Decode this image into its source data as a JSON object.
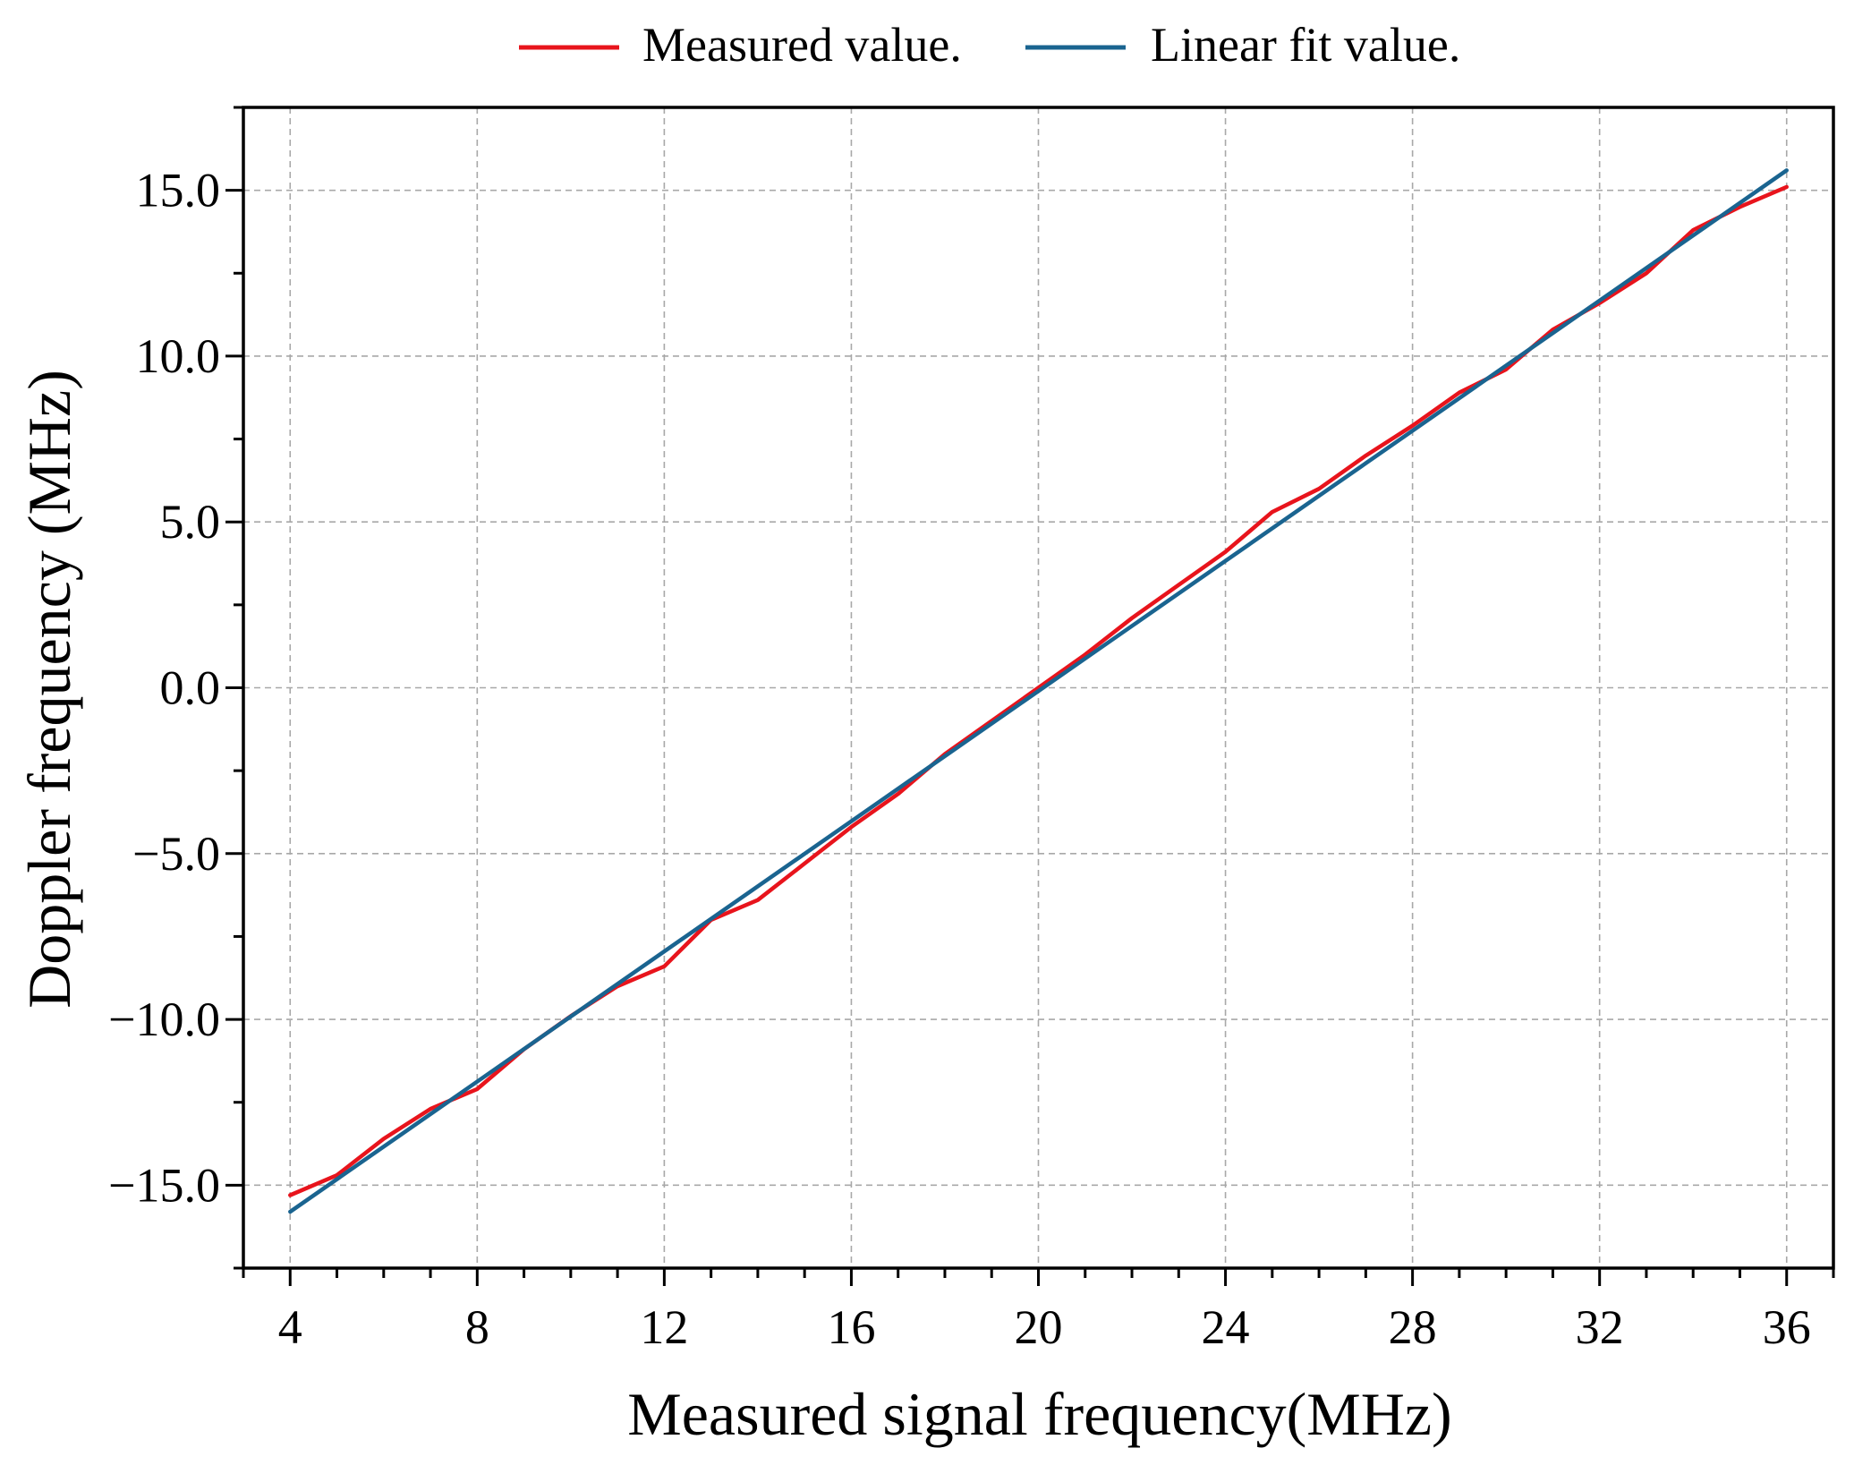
{
  "chart_data": {
    "type": "line",
    "title": "",
    "xlabel": "Measured signal frequency(MHz)",
    "ylabel": "Doppler frequency (MHz)",
    "xlim": [
      3,
      37
    ],
    "ylim": [
      -17.5,
      17.5
    ],
    "x_ticks": [
      4,
      8,
      12,
      16,
      20,
      24,
      28,
      32,
      36
    ],
    "x_tick_labels": [
      "4",
      "8",
      "12",
      "16",
      "20",
      "24",
      "28",
      "32",
      "36"
    ],
    "y_ticks": [
      -15,
      -10,
      -5,
      0,
      5,
      10,
      15
    ],
    "y_tick_labels": [
      "−15.0",
      "−10.0",
      "−5.0",
      "0.0",
      "5.0",
      "10.0",
      "15.0"
    ],
    "grid": true,
    "legend_position": "top-center",
    "series": [
      {
        "name": "Measured value.",
        "color": "#e8141c",
        "x": [
          4,
          5,
          6,
          7,
          8,
          9,
          10,
          11,
          12,
          13,
          14,
          15,
          16,
          17,
          18,
          19,
          20,
          21,
          22,
          23,
          24,
          25,
          26,
          27,
          28,
          29,
          30,
          31,
          32,
          33,
          34,
          35,
          36
        ],
        "values": [
          -15.3,
          -14.7,
          -13.6,
          -12.7,
          -12.1,
          -10.9,
          -9.9,
          -9.0,
          -8.4,
          -7.0,
          -6.4,
          -5.3,
          -4.2,
          -3.2,
          -2.0,
          -1.0,
          0.0,
          1.0,
          2.1,
          3.1,
          4.1,
          5.3,
          6.0,
          7.0,
          7.9,
          8.9,
          9.6,
          10.8,
          11.6,
          12.5,
          13.8,
          14.5,
          15.1
        ]
      },
      {
        "name": "Linear fit value.",
        "color": "#1a6490",
        "x": [
          4,
          36
        ],
        "values": [
          -15.8,
          15.6
        ]
      }
    ]
  }
}
